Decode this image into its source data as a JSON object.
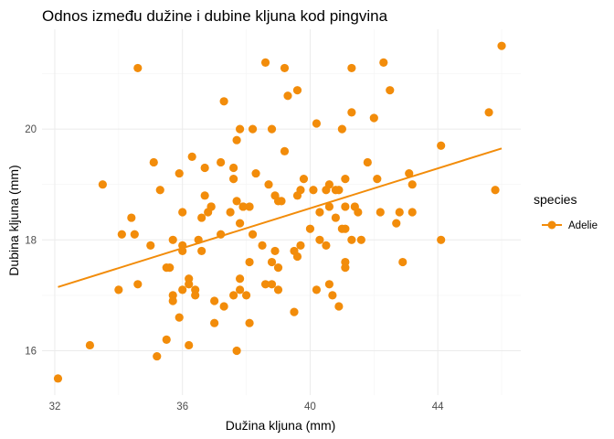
{
  "chart_data": {
    "type": "scatter",
    "title": "Odnos između dužine i dubine kljuna kod pingvina",
    "xlabel": "Dužina kljuna (mm)",
    "ylabel": "Dubina kljuna (mm)",
    "xlim": [
      31.6,
      46.6
    ],
    "ylim": [
      15.2,
      21.8
    ],
    "x_ticks": [
      32,
      36,
      40,
      44
    ],
    "y_ticks": [
      16,
      18,
      20
    ],
    "grid": true,
    "legend": {
      "title": "species",
      "entries": [
        "Adelie"
      ],
      "position": "right"
    },
    "series": [
      {
        "name": "Adelie",
        "color": "#F28C0A",
        "points": [
          [
            32.1,
            15.5
          ],
          [
            33.1,
            16.1
          ],
          [
            33.5,
            19.0
          ],
          [
            34.0,
            17.1
          ],
          [
            34.1,
            18.1
          ],
          [
            34.4,
            18.4
          ],
          [
            34.5,
            18.1
          ],
          [
            34.6,
            21.1
          ],
          [
            34.6,
            17.2
          ],
          [
            35.0,
            17.9
          ],
          [
            35.1,
            19.4
          ],
          [
            35.2,
            15.9
          ],
          [
            35.3,
            18.9
          ],
          [
            35.5,
            17.5
          ],
          [
            35.5,
            16.2
          ],
          [
            35.6,
            17.5
          ],
          [
            35.7,
            16.9
          ],
          [
            35.7,
            17.0
          ],
          [
            35.7,
            18.0
          ],
          [
            35.9,
            16.6
          ],
          [
            35.9,
            19.2
          ],
          [
            36.0,
            17.1
          ],
          [
            36.0,
            17.8
          ],
          [
            36.0,
            18.5
          ],
          [
            36.0,
            17.9
          ],
          [
            36.2,
            16.1
          ],
          [
            36.2,
            17.3
          ],
          [
            36.2,
            17.2
          ],
          [
            36.3,
            19.5
          ],
          [
            36.4,
            17.1
          ],
          [
            36.4,
            17.0
          ],
          [
            36.5,
            18.0
          ],
          [
            36.6,
            17.8
          ],
          [
            36.6,
            18.4
          ],
          [
            36.7,
            19.3
          ],
          [
            36.7,
            18.8
          ],
          [
            36.8,
            18.5
          ],
          [
            36.9,
            18.6
          ],
          [
            37.0,
            16.9
          ],
          [
            37.0,
            16.5
          ],
          [
            37.2,
            18.1
          ],
          [
            37.2,
            19.4
          ],
          [
            37.3,
            20.5
          ],
          [
            37.3,
            16.8
          ],
          [
            37.6,
            17.0
          ],
          [
            37.6,
            19.3
          ],
          [
            37.6,
            19.1
          ],
          [
            37.7,
            18.7
          ],
          [
            37.7,
            19.8
          ],
          [
            37.7,
            16.0
          ],
          [
            37.8,
            17.1
          ],
          [
            37.8,
            17.3
          ],
          [
            37.8,
            18.3
          ],
          [
            37.8,
            20.0
          ],
          [
            37.9,
            18.6
          ],
          [
            38.1,
            18.6
          ],
          [
            38.1,
            17.6
          ],
          [
            38.1,
            16.5
          ],
          [
            38.2,
            20.0
          ],
          [
            38.2,
            18.1
          ],
          [
            38.3,
            19.2
          ],
          [
            38.5,
            17.9
          ],
          [
            38.6,
            21.2
          ],
          [
            38.6,
            17.2
          ],
          [
            38.7,
            19.0
          ],
          [
            38.8,
            17.2
          ],
          [
            38.8,
            20.0
          ],
          [
            38.8,
            17.6
          ],
          [
            38.9,
            18.8
          ],
          [
            39.0,
            17.1
          ],
          [
            39.0,
            18.7
          ],
          [
            39.1,
            18.7
          ],
          [
            39.2,
            19.6
          ],
          [
            39.2,
            21.1
          ],
          [
            39.3,
            20.6
          ],
          [
            39.5,
            17.8
          ],
          [
            39.5,
            16.7
          ],
          [
            39.6,
            18.8
          ],
          [
            39.6,
            20.7
          ],
          [
            39.6,
            17.7
          ],
          [
            39.7,
            18.9
          ],
          [
            39.8,
            19.1
          ],
          [
            40.1,
            18.9
          ],
          [
            40.2,
            20.1
          ],
          [
            40.2,
            17.1
          ],
          [
            40.3,
            18.0
          ],
          [
            40.5,
            17.9
          ],
          [
            40.5,
            18.9
          ],
          [
            40.6,
            18.6
          ],
          [
            40.6,
            17.2
          ],
          [
            40.6,
            19.0
          ],
          [
            40.7,
            17.0
          ],
          [
            40.8,
            18.4
          ],
          [
            40.8,
            18.9
          ],
          [
            40.9,
            16.8
          ],
          [
            40.9,
            18.9
          ],
          [
            41.0,
            20.0
          ],
          [
            41.1,
            18.2
          ],
          [
            41.1,
            19.1
          ],
          [
            41.1,
            17.5
          ],
          [
            41.1,
            18.6
          ],
          [
            41.1,
            17.6
          ],
          [
            41.3,
            20.3
          ],
          [
            41.3,
            21.1
          ],
          [
            41.4,
            18.6
          ],
          [
            41.5,
            18.5
          ],
          [
            41.6,
            18.0
          ],
          [
            41.8,
            19.4
          ],
          [
            42.0,
            20.2
          ],
          [
            42.1,
            19.1
          ],
          [
            42.2,
            18.5
          ],
          [
            42.3,
            21.2
          ],
          [
            42.5,
            20.7
          ],
          [
            42.7,
            18.3
          ],
          [
            42.8,
            18.5
          ],
          [
            42.9,
            17.6
          ],
          [
            43.1,
            19.2
          ],
          [
            43.2,
            19.0
          ],
          [
            43.2,
            18.5
          ],
          [
            44.1,
            19.7
          ],
          [
            44.1,
            18.0
          ],
          [
            45.6,
            20.3
          ],
          [
            45.8,
            18.9
          ],
          [
            46.0,
            21.5
          ],
          [
            41.0,
            18.2
          ],
          [
            39.7,
            17.9
          ],
          [
            38.9,
            17.8
          ],
          [
            37.9,
            18.6
          ],
          [
            40.3,
            18.5
          ],
          [
            36.9,
            18.6
          ],
          [
            39.0,
            17.5
          ],
          [
            41.3,
            18.0
          ],
          [
            40.0,
            18.2
          ],
          [
            37.5,
            18.5
          ],
          [
            38.0,
            17.0
          ]
        ]
      }
    ],
    "trendline": {
      "type": "linear",
      "from": [
        32.1,
        17.15
      ],
      "to": [
        46.0,
        19.65
      ]
    }
  }
}
